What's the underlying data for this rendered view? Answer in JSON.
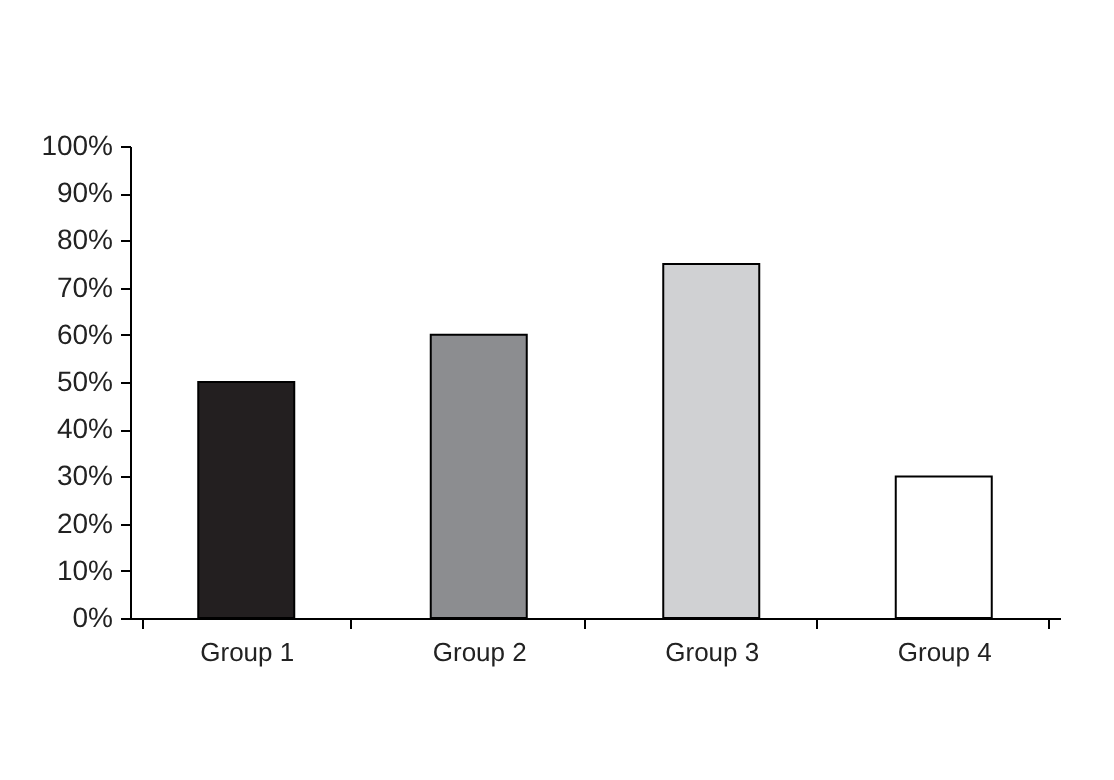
{
  "chart_data": {
    "type": "bar",
    "categories": [
      "Group 1",
      "Group 2",
      "Group 3",
      "Group 4"
    ],
    "values": [
      50,
      60,
      75,
      30
    ],
    "colors": [
      "#231f20",
      "#8c8d90",
      "#d0d1d3",
      "#ffffff"
    ],
    "ylim": [
      0,
      100
    ],
    "yticks": [
      {
        "value": 0,
        "label": "0%"
      },
      {
        "value": 10,
        "label": "10%"
      },
      {
        "value": 20,
        "label": "20%"
      },
      {
        "value": 30,
        "label": "30%"
      },
      {
        "value": 40,
        "label": "40%"
      },
      {
        "value": 50,
        "label": "50%"
      },
      {
        "value": 60,
        "label": "60%"
      },
      {
        "value": 70,
        "label": "70%"
      },
      {
        "value": 80,
        "label": "80%"
      },
      {
        "value": 90,
        "label": "90%"
      },
      {
        "value": 100,
        "label": "100%"
      }
    ],
    "grid": false
  }
}
